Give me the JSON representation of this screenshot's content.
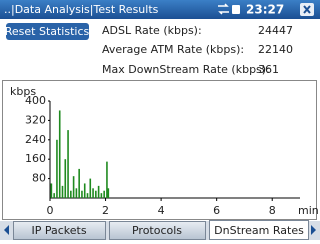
{
  "header": {
    "title": "..|Data Analysis|Test Results",
    "time": "23:27"
  },
  "button": "Reset Statistics",
  "stats": [
    {
      "label": "ADSL Rate (kbps):",
      "value": 24447
    },
    {
      "label": "Average ATM Rate (kbps):",
      "value": 22140
    },
    {
      "label": "Max DownStream Rate (kbps):",
      "value": 361
    }
  ],
  "chart_data": {
    "type": "bar",
    "y_label": "kbps",
    "x_label": "min",
    "x": [
      0.05,
      0.15,
      0.25,
      0.35,
      0.45,
      0.55,
      0.65,
      0.75,
      0.85,
      0.95,
      1.05,
      1.15,
      1.25,
      1.35,
      1.45,
      1.55,
      1.65,
      1.75,
      1.85,
      1.95,
      2.05,
      2.1
    ],
    "values": [
      60,
      20,
      240,
      361,
      50,
      160,
      280,
      30,
      90,
      40,
      120,
      30,
      60,
      20,
      80,
      40,
      30,
      50,
      20,
      30,
      150,
      40
    ],
    "color": "#1f8a1f",
    "xlim": [
      0,
      9
    ],
    "xticks": [
      0,
      2,
      4,
      6,
      8
    ],
    "ylim": [
      0,
      400
    ],
    "yticks": [
      80,
      160,
      240,
      320,
      400
    ]
  },
  "tabs": [
    "IP Packets",
    "Protocols",
    "DnStream Rates"
  ]
}
